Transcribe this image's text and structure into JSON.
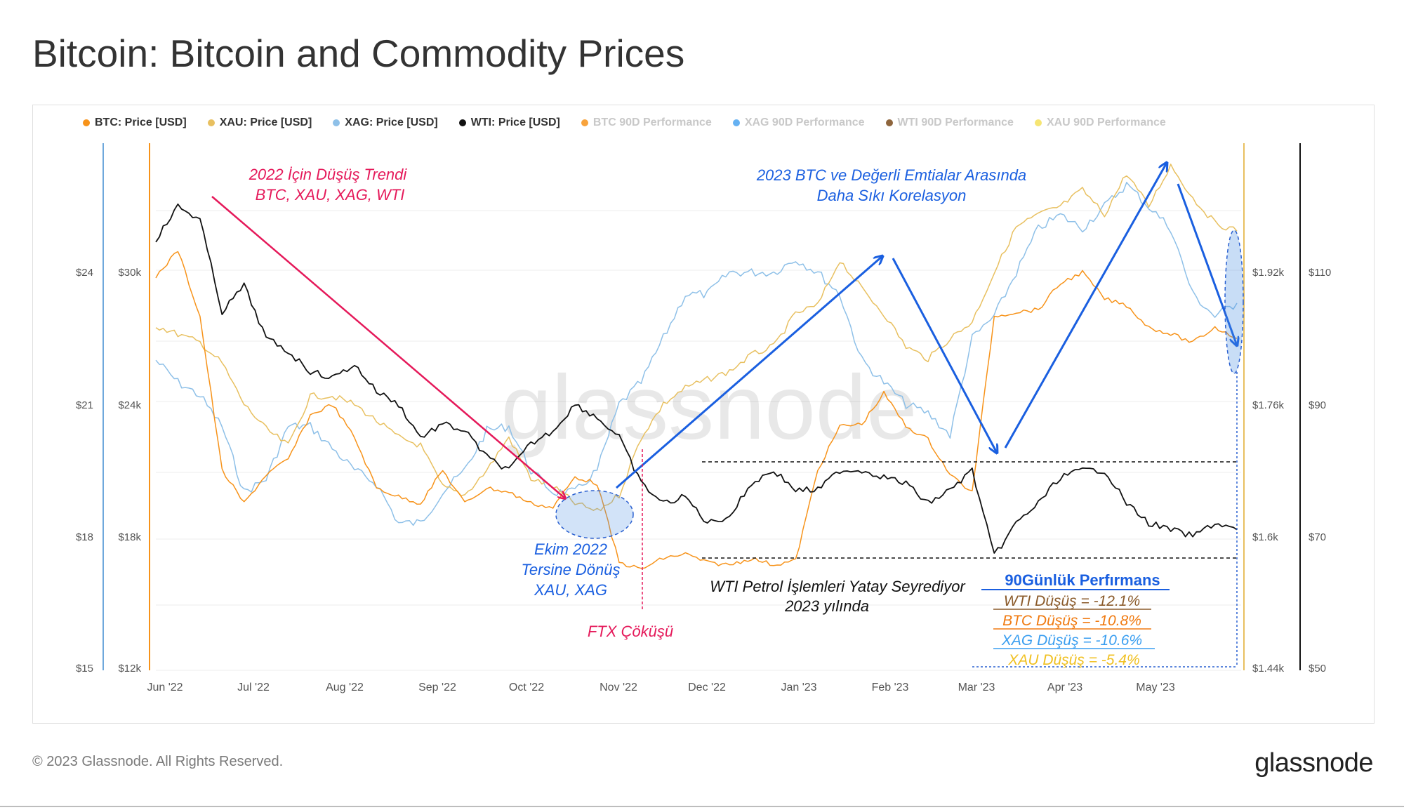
{
  "title": "Bitcoin: Bitcoin and Commodity Prices",
  "legend": [
    {
      "label": "BTC: Price [USD]",
      "color": "#f7931a",
      "faded": false
    },
    {
      "label": "XAU: Price [USD]",
      "color": "#e8c060",
      "faded": false
    },
    {
      "label": "XAG: Price [USD]",
      "color": "#8ec0e8",
      "faded": false
    },
    {
      "label": "WTI: Price [USD]",
      "color": "#111111",
      "faded": false
    },
    {
      "label": "BTC 90D Performance",
      "color": "#f7931a",
      "faded": true
    },
    {
      "label": "XAG 90D Performance",
      "color": "#4aa3f0",
      "faded": true
    },
    {
      "label": "WTI 90D Performance",
      "color": "#7a4a1a",
      "faded": true
    },
    {
      "label": "XAU 90D Performance",
      "color": "#f5e05a",
      "faded": true
    }
  ],
  "chart_data": {
    "type": "line",
    "x_labels": [
      "Jun '22",
      "Jul '22",
      "Aug '22",
      "Sep '22",
      "Oct '22",
      "Nov '22",
      "Dec '22",
      "Jan '23",
      "Feb '23",
      "Mar '23",
      "Apr '23",
      "May '23"
    ],
    "axes": {
      "xag_left": [
        "$24",
        "$21",
        "$18",
        "$15"
      ],
      "btc_left": [
        "$30k",
        "$24k",
        "$18k",
        "$12k"
      ],
      "xau_right": [
        "$1.92k",
        "$1.76k",
        "$1.6k",
        "$1.44k"
      ],
      "wti_right": [
        "$110",
        "$90",
        "$70",
        "$50"
      ]
    },
    "series": [
      {
        "name": "BTC: Price [USD]",
        "color": "#f7931a",
        "values": [
          29800,
          31000,
          28000,
          21000,
          19500,
          20800,
          21500,
          23500,
          24000,
          22500,
          20200,
          19800,
          19500,
          21000,
          19500,
          20200,
          20000,
          19500,
          19300,
          20700,
          20400,
          16800,
          16500,
          17000,
          17200,
          16800,
          16700,
          17000,
          16700,
          16900,
          21000,
          23000,
          23100,
          24500,
          23000,
          22400,
          20800,
          20000,
          28000,
          28200,
          28300,
          29500,
          30000,
          28800,
          28500,
          27500,
          27200,
          26800,
          27500,
          27000
        ]
      },
      {
        "name": "XAU: Price [USD]",
        "color": "#e8c060",
        "values": [
          1855,
          1845,
          1835,
          1810,
          1760,
          1730,
          1710,
          1770,
          1770,
          1760,
          1740,
          1720,
          1710,
          1660,
          1650,
          1680,
          1720,
          1670,
          1660,
          1640,
          1630,
          1650,
          1720,
          1760,
          1780,
          1790,
          1800,
          1820,
          1830,
          1870,
          1880,
          1935,
          1900,
          1870,
          1830,
          1815,
          1840,
          1860,
          1920,
          1975,
          1990,
          2000,
          2020,
          1990,
          2040,
          2000,
          2050,
          2010,
          1980,
          1970
        ]
      },
      {
        "name": "XAG: Price [USD]",
        "color": "#8ec0e8",
        "values": [
          22.0,
          21.5,
          21.2,
          20.5,
          19.0,
          19.3,
          20.5,
          20.5,
          20.0,
          19.5,
          19.2,
          18.3,
          18.3,
          19.0,
          19.5,
          20.4,
          20.5,
          19.5,
          19.0,
          19.0,
          19.5,
          21.0,
          21.5,
          22.5,
          23.5,
          23.5,
          24.0,
          24.0,
          24.0,
          24.3,
          24.0,
          23.5,
          22.0,
          21.5,
          21.0,
          20.8,
          20.3,
          22.5,
          23.0,
          24.0,
          25.0,
          25.3,
          25.0,
          25.5,
          26.0,
          25.5,
          25.0,
          23.5,
          23.0,
          23.3
        ]
      },
      {
        "name": "WTI: Price [USD]",
        "color": "#111111",
        "values": [
          115,
          120,
          118,
          104,
          108,
          100,
          98,
          95,
          94,
          96,
          92,
          90,
          85,
          87,
          86,
          82,
          80,
          84,
          86,
          90,
          88,
          85,
          78,
          75,
          76,
          72,
          73,
          78,
          80,
          77,
          77,
          80,
          80,
          79,
          78,
          75,
          77,
          80,
          67,
          72,
          75,
          79,
          80,
          80,
          75,
          72,
          71,
          70,
          72,
          71
        ]
      },
      {
        "name": "XAU 90D Performance",
        "color": "#f5e05a",
        "values": [
          -5.4
        ]
      },
      {
        "name": "XAG 90D Performance",
        "color": "#4aa3f0",
        "values": [
          -10.6
        ]
      },
      {
        "name": "BTC 90D Performance",
        "color": "#f7931a",
        "values": [
          -10.8
        ]
      },
      {
        "name": "WTI 90D Performance",
        "color": "#7a4a1a",
        "values": [
          -12.1
        ]
      }
    ],
    "annotations": {
      "downtrend": [
        "2022 İçin Düşüş Trendi",
        "BTC, XAU, XAG, WTI"
      ],
      "correlation": [
        "2023 BTC ve Değerli Emtialar Arasında",
        "Daha Sıkı Korelasyon"
      ],
      "reversal": [
        "Ekim 2022",
        "Tersine Dönüş",
        "XAU, XAG"
      ],
      "ftx": "FTX Çöküşü",
      "wti_sideways": [
        "WTI Petrol İşlemleri Yatay Seyrediyor",
        "2023 yılında"
      ],
      "perf_title": "90Günlük Perfırmans",
      "perf_lines": [
        "WTI Düşüş = -12.1%",
        "BTC Düşüş = -10.8%",
        "XAG Düşüş = -10.6%",
        "XAU Düşüş = -5.4%"
      ],
      "watermark": "glassnode"
    }
  },
  "footer": {
    "copyright": "© 2023 Glassnode. All Rights Reserved.",
    "brand": "glassnode"
  }
}
